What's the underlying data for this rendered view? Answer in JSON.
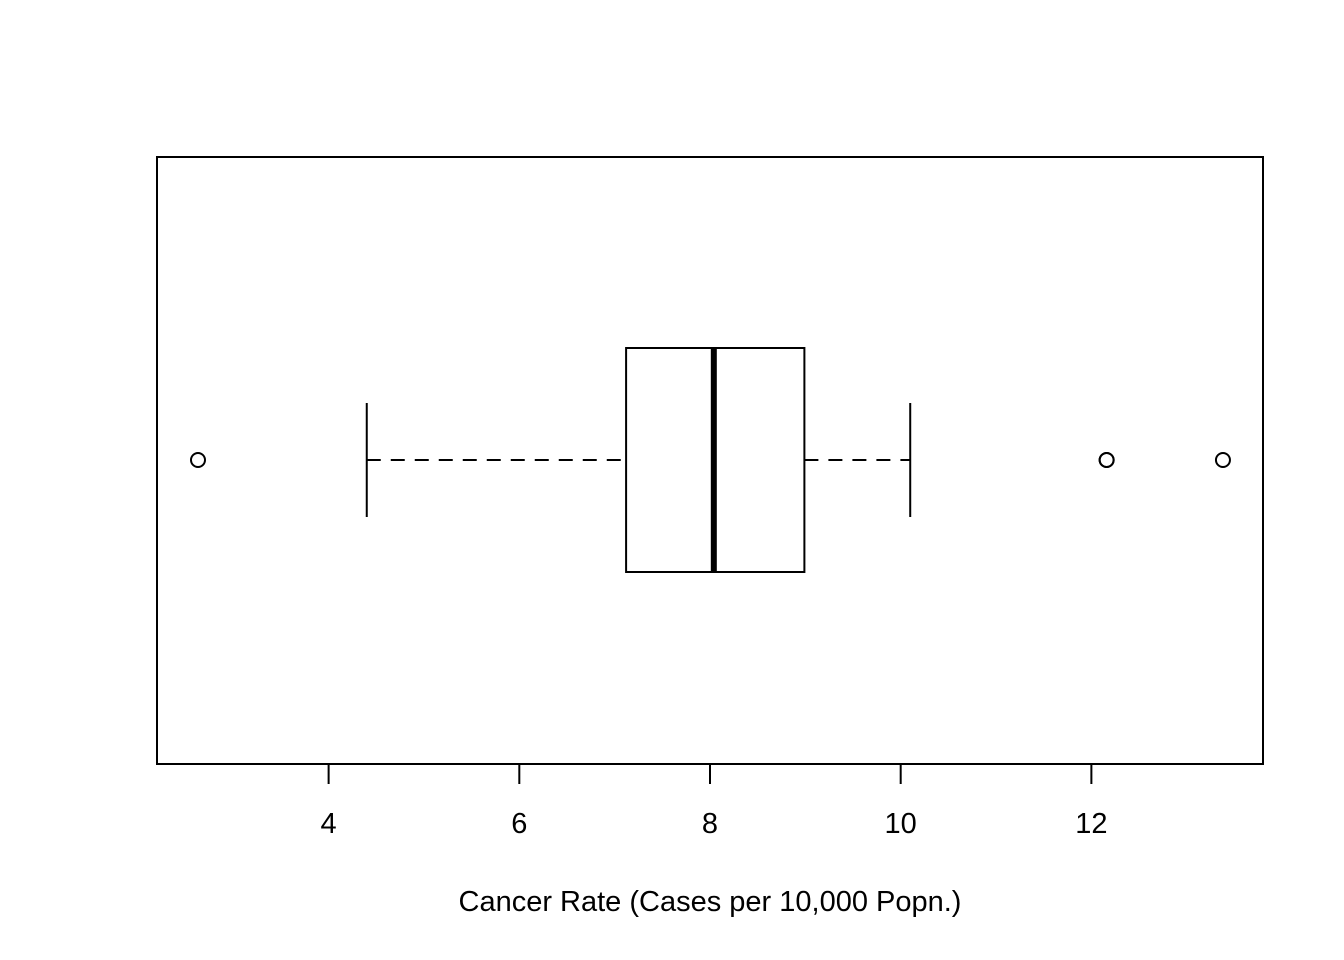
{
  "chart_data": {
    "type": "boxplot",
    "orientation": "horizontal",
    "title": "",
    "xlabel": "Cancer Rate (Cases per 10,000 Popn.)",
    "ylabel": "",
    "xlim": [
      2.2,
      13.8
    ],
    "x_ticks": [
      4,
      6,
      8,
      10,
      12
    ],
    "x_tick_labels": [
      "4",
      "6",
      "8",
      "10",
      "12"
    ],
    "grid": false,
    "box": {
      "whisker_low": 4.4,
      "q1": 7.12,
      "median": 8.04,
      "q3": 8.99,
      "whisker_high": 10.1
    },
    "outliers": [
      2.63,
      12.16,
      12.16,
      13.38
    ],
    "colors": {
      "stroke": "#000000",
      "background": "#ffffff"
    }
  }
}
